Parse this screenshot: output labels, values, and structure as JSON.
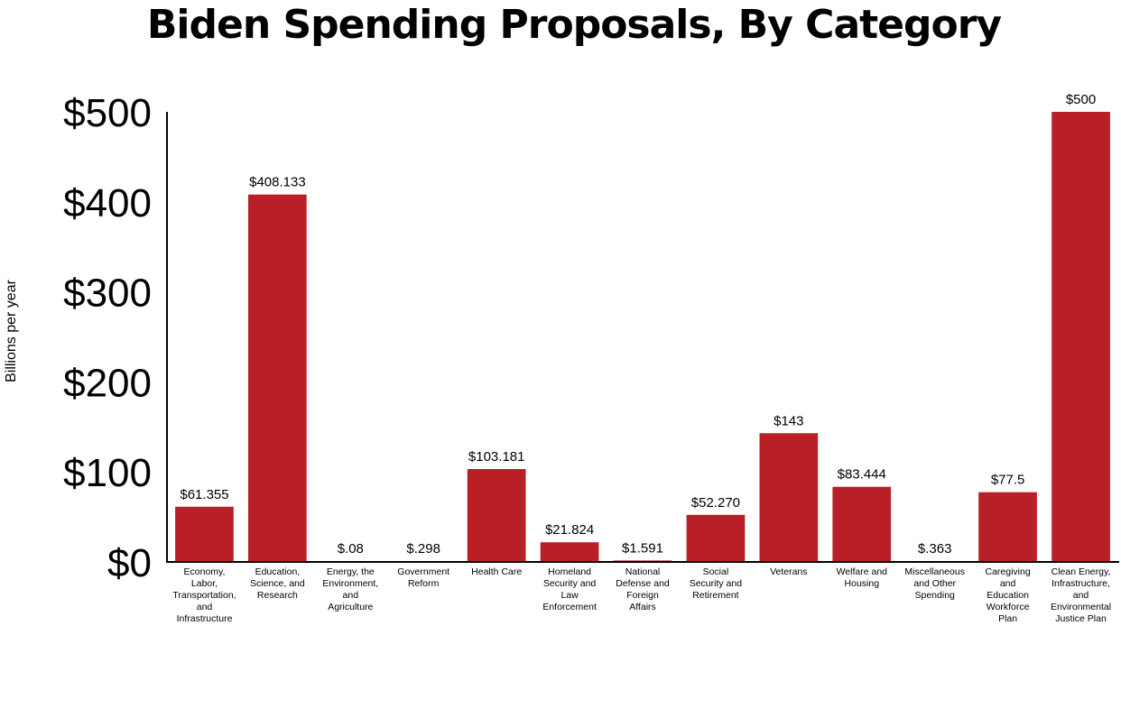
{
  "chart_data": {
    "type": "bar",
    "title": "Biden Spending Proposals, By Category",
    "ylabel": "Billions per year",
    "xlabel": "",
    "ylim": [
      0,
      500
    ],
    "yticks": [
      "$0",
      "$100",
      "$200",
      "$300",
      "$400",
      "$500"
    ],
    "ytick_values": [
      0,
      100,
      200,
      300,
      400,
      500
    ],
    "bar_color": "#b91f27",
    "categories": [
      "Economy, Labor, Transportation, and Infrastructure",
      "Education, Science, and Research",
      "Energy, the Environment, and Agriculture",
      "Government Reform",
      "Health Care",
      "Homeland Security and Law Enforcement",
      "National Defense and Foreign Affairs",
      "Social Security and Retirement",
      "Veterans",
      "Welfare and Housing",
      "Miscellaneous and Other Spending",
      "Caregiving and Education Workforce Plan",
      "Clean Energy, Infrastructure, and Environmental Justice Plan"
    ],
    "category_lines": [
      [
        "Economy,",
        "Labor,",
        "Transportation,",
        "and",
        "Infrastructure"
      ],
      [
        "Education,",
        "Science, and",
        "Research"
      ],
      [
        "Energy, the",
        "Environment,",
        "and",
        "Agriculture"
      ],
      [
        "Government",
        "Reform"
      ],
      [
        "Health Care"
      ],
      [
        "Homeland",
        "Security and",
        "Law",
        "Enforcement"
      ],
      [
        "National",
        "Defense and",
        "Foreign",
        "Affairs"
      ],
      [
        "Social",
        "Security and",
        "Retirement"
      ],
      [
        "Veterans"
      ],
      [
        "Welfare and",
        "Housing"
      ],
      [
        "Miscellaneous",
        "and Other",
        "Spending"
      ],
      [
        "Caregiving",
        "and",
        "Education",
        "Workforce",
        "Plan"
      ],
      [
        "Clean Energy,",
        "Infrastructure,",
        "and",
        "Environmental",
        "Justice Plan"
      ]
    ],
    "values": [
      61.355,
      408.133,
      0.08,
      0.298,
      103.181,
      21.824,
      1.591,
      52.27,
      143,
      83.444,
      0.363,
      77.5,
      500
    ],
    "value_labels": [
      "$61.355",
      "$408.133",
      "$.08",
      "$.298",
      "$103.181",
      "$21.824",
      "$1.591",
      "$52.270",
      "$143",
      "$83.444",
      "$.363",
      "$77.5",
      "$500"
    ],
    "grid": false,
    "legend": "none"
  }
}
